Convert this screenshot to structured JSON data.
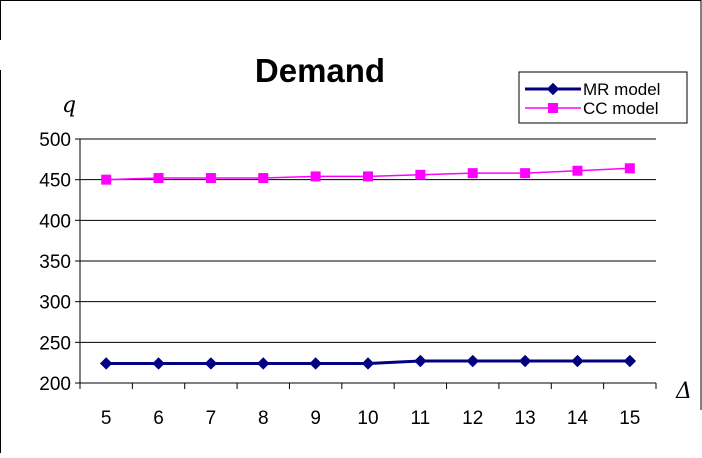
{
  "chart_data": {
    "type": "line",
    "title": "Demand",
    "ylabel": "q",
    "xlabel": "Δ",
    "x": [
      5,
      6,
      7,
      8,
      9,
      10,
      11,
      12,
      13,
      14,
      15
    ],
    "ylim": [
      200,
      500
    ],
    "yticks": [
      200,
      250,
      300,
      350,
      400,
      450,
      500
    ],
    "grid": "horizontal",
    "legend": "top-right",
    "series": [
      {
        "name": "MR model",
        "values": [
          224,
          224,
          224,
          224,
          224,
          224,
          227,
          227,
          227,
          227,
          227
        ],
        "color": "#000080",
        "marker": "diamond"
      },
      {
        "name": "CC model",
        "values": [
          450,
          452,
          452,
          452,
          454,
          454,
          456,
          458,
          458,
          461,
          464
        ],
        "color": "#ff00ff",
        "marker": "square"
      }
    ]
  }
}
